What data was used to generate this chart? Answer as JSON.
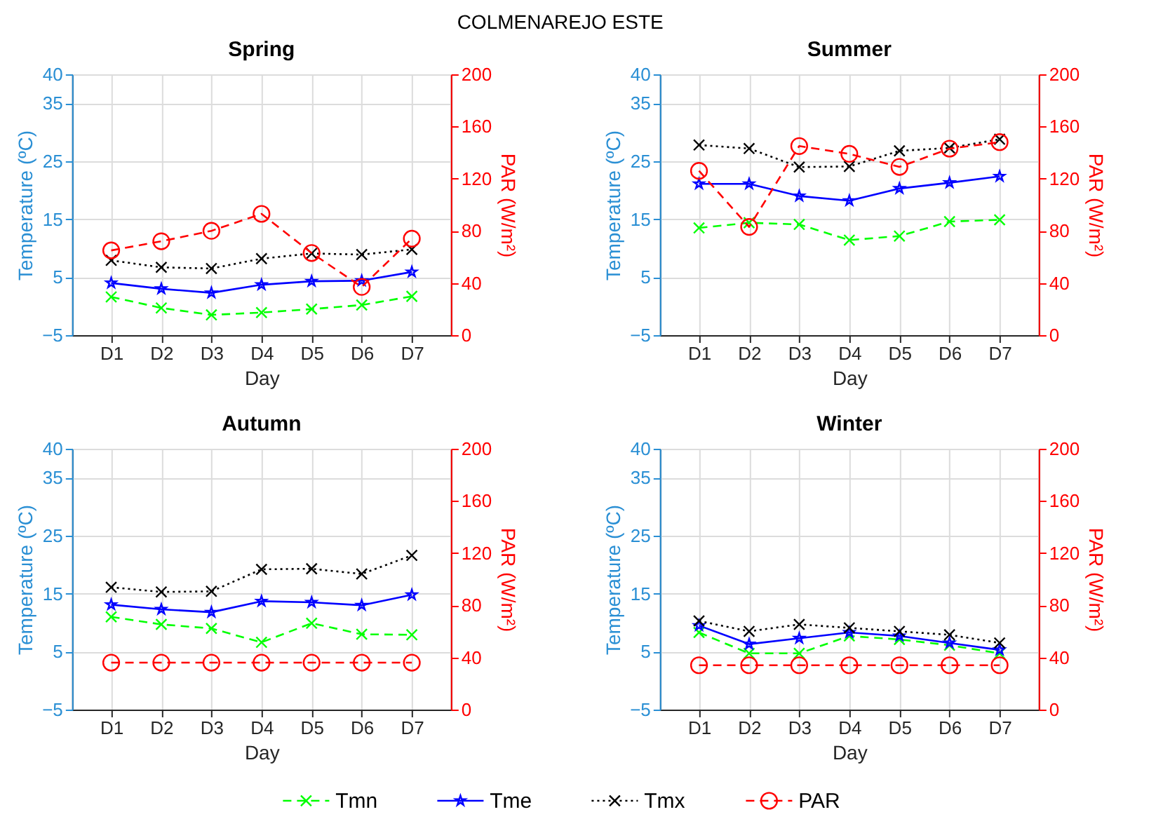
{
  "chart_data": [
    {
      "type": "line",
      "title": "Spring",
      "annotations": [
        "COLMENAREJO ESTE"
      ],
      "xlabel": "Day",
      "ylabel": "Temperature (ºC)",
      "y2label": "PAR (W/m²)",
      "categories": [
        "D1",
        "D2",
        "D3",
        "D4",
        "D5",
        "D6",
        "D7"
      ],
      "series": [
        {
          "name": "Tmn",
          "color": "#00ff00",
          "marker": "cross",
          "line_style": "dashed",
          "values": [
            1.6,
            -0.3,
            -1.5,
            -1.1,
            -0.5,
            0.2,
            1.7
          ]
        },
        {
          "name": "Tme",
          "color": "#0000ff",
          "marker": "star",
          "line_style": "solid",
          "values": [
            4.0,
            3.0,
            2.3,
            3.7,
            4.3,
            4.4,
            5.9
          ]
        },
        {
          "name": "Tmx",
          "color": "#000000",
          "marker": "cross",
          "line_style": "dotted",
          "values": [
            7.9,
            6.7,
            6.5,
            8.2,
            9.1,
            8.9,
            9.8
          ]
        },
        {
          "name": "PAR",
          "color": "#ff0000",
          "marker": "circle",
          "line_style": "dashed",
          "axis": "y2",
          "values": [
            65,
            72,
            80,
            93,
            63,
            37,
            74
          ]
        }
      ],
      "ylim": [
        -5,
        40
      ],
      "yticks": [
        -5,
        5,
        15,
        25,
        35,
        40
      ],
      "y2lim": [
        0,
        200
      ],
      "y2ticks": [
        0,
        40,
        80,
        120,
        160,
        200
      ],
      "grid": true,
      "legend": "bottom"
    },
    {
      "type": "line",
      "title": "Summer",
      "xlabel": "Day",
      "ylabel": "Temperature (ºC)",
      "y2label": "PAR (W/m²)",
      "categories": [
        "D1",
        "D2",
        "D3",
        "D4",
        "D5",
        "D6",
        "D7"
      ],
      "series": [
        {
          "name": "Tmn",
          "color": "#00ff00",
          "marker": "cross",
          "line_style": "dashed",
          "values": [
            13.5,
            14.4,
            14.1,
            11.4,
            12.1,
            14.6,
            14.9
          ]
        },
        {
          "name": "Tme",
          "color": "#0000ff",
          "marker": "star",
          "line_style": "solid",
          "values": [
            21.1,
            21.1,
            19.0,
            18.2,
            20.3,
            21.3,
            22.4
          ]
        },
        {
          "name": "Tmx",
          "color": "#000000",
          "marker": "cross",
          "line_style": "dotted",
          "values": [
            27.8,
            27.2,
            24.0,
            24.1,
            26.8,
            27.3,
            28.8
          ]
        },
        {
          "name": "PAR",
          "color": "#ff0000",
          "marker": "circle",
          "line_style": "dashed",
          "axis": "y2",
          "values": [
            126,
            83,
            145,
            139,
            129,
            143,
            148
          ]
        }
      ],
      "ylim": [
        -5,
        40
      ],
      "yticks": [
        -5,
        5,
        15,
        25,
        35,
        40
      ],
      "y2lim": [
        0,
        200
      ],
      "y2ticks": [
        0,
        40,
        80,
        120,
        160,
        200
      ],
      "grid": true
    },
    {
      "type": "line",
      "title": "Autumn",
      "xlabel": "Day",
      "ylabel": "Temperature (ºC)",
      "y2label": "PAR (W/m²)",
      "categories": [
        "D1",
        "D2",
        "D3",
        "D4",
        "D5",
        "D6",
        "D7"
      ],
      "series": [
        {
          "name": "Tmn",
          "color": "#00ff00",
          "marker": "cross",
          "line_style": "dashed",
          "values": [
            11.0,
            9.7,
            9.0,
            6.6,
            9.9,
            8.0,
            7.9
          ]
        },
        {
          "name": "Tme",
          "color": "#0000ff",
          "marker": "star",
          "line_style": "solid",
          "values": [
            13.1,
            12.3,
            11.8,
            13.7,
            13.5,
            13.0,
            14.8
          ]
        },
        {
          "name": "Tmx",
          "color": "#000000",
          "marker": "cross",
          "line_style": "dotted",
          "values": [
            16.1,
            15.3,
            15.4,
            19.2,
            19.3,
            18.4,
            21.6
          ]
        },
        {
          "name": "PAR",
          "color": "#ff0000",
          "marker": "circle",
          "line_style": "dashed",
          "axis": "y2",
          "values": [
            36,
            36,
            36,
            36,
            36,
            36,
            36
          ]
        }
      ],
      "ylim": [
        -5,
        40
      ],
      "yticks": [
        -5,
        5,
        15,
        25,
        35,
        40
      ],
      "y2lim": [
        0,
        200
      ],
      "y2ticks": [
        0,
        40,
        80,
        120,
        160,
        200
      ],
      "grid": true
    },
    {
      "type": "line",
      "title": "Winter",
      "xlabel": "Day",
      "ylabel": "Temperature (ºC)",
      "y2label": "PAR (W/m²)",
      "categories": [
        "D1",
        "D2",
        "D3",
        "D4",
        "D5",
        "D6",
        "D7"
      ],
      "series": [
        {
          "name": "Tmn",
          "color": "#00ff00",
          "marker": "cross",
          "line_style": "dashed",
          "values": [
            8.3,
            4.7,
            4.7,
            7.7,
            7.1,
            6.1,
            4.7
          ]
        },
        {
          "name": "Tme",
          "color": "#0000ff",
          "marker": "star",
          "line_style": "solid",
          "values": [
            9.5,
            6.3,
            7.3,
            8.3,
            7.7,
            6.5,
            5.3
          ]
        },
        {
          "name": "Tmx",
          "color": "#000000",
          "marker": "cross",
          "line_style": "dotted",
          "values": [
            10.3,
            8.5,
            9.7,
            9.1,
            8.5,
            7.9,
            6.5
          ]
        },
        {
          "name": "PAR",
          "color": "#ff0000",
          "marker": "circle",
          "line_style": "dashed",
          "axis": "y2",
          "values": [
            34,
            34,
            34,
            34,
            34,
            34,
            34
          ]
        }
      ],
      "ylim": [
        -5,
        40
      ],
      "yticks": [
        -5,
        5,
        15,
        25,
        35,
        40
      ],
      "y2lim": [
        0,
        200
      ],
      "y2ticks": [
        0,
        40,
        80,
        120,
        160,
        200
      ],
      "grid": true
    }
  ]
}
